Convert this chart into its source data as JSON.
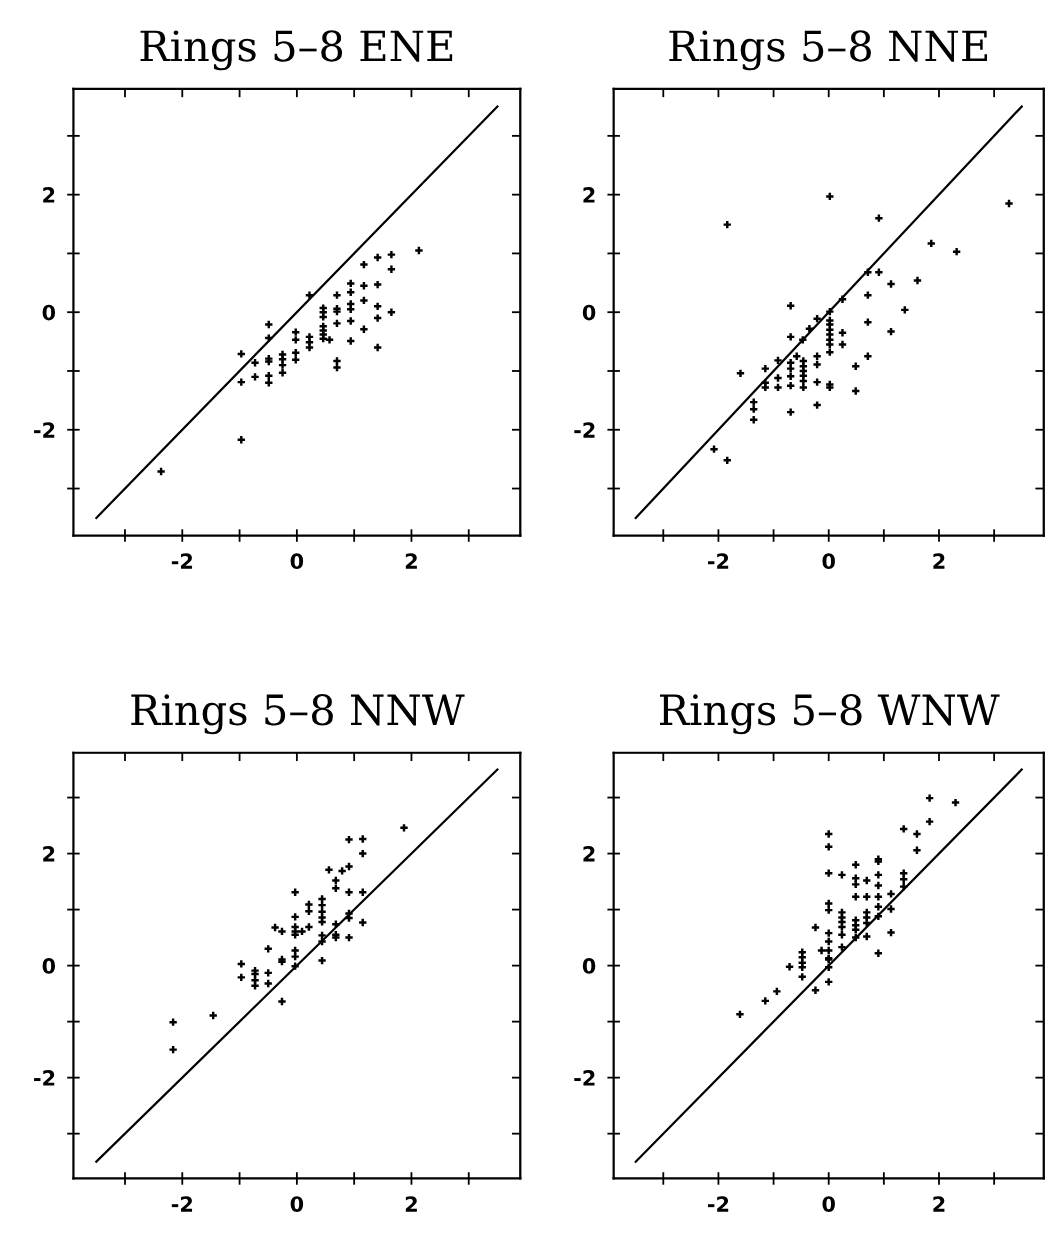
{
  "chart_data": [
    {
      "type": "scatter",
      "title": "Rings 5–8 ENE",
      "xlim": [
        -3.9,
        3.9
      ],
      "ylim": [
        -3.8,
        3.8
      ],
      "xticks": [
        {
          "value": -3,
          "label": null
        },
        -2,
        {
          "value": -1,
          "label": null
        },
        0,
        {
          "value": 1,
          "label": null
        },
        2,
        {
          "value": 3,
          "label": null
        }
      ],
      "yticks": [
        {
          "value": -3,
          "label": null
        },
        -2,
        {
          "value": -1,
          "label": null
        },
        0,
        {
          "value": 1,
          "label": null
        },
        2,
        {
          "value": 3,
          "label": null
        }
      ],
      "grid": false,
      "legend": false,
      "marker": "cross",
      "series": [
        {
          "type": "scatter",
          "color": "#000000",
          "x": [
            -2.37,
            -0.97,
            -0.97,
            -0.97,
            -0.73,
            -0.73,
            -0.49,
            -0.49,
            -0.49,
            -0.49,
            -0.49,
            -0.49,
            -0.25,
            -0.25,
            -0.25,
            -0.25,
            -0.02,
            -0.02,
            -0.02,
            -0.02,
            0.22,
            0.22,
            0.22,
            0.22,
            0.46,
            0.46,
            0.46,
            0.46,
            0.46,
            0.46,
            0.46,
            0.57,
            0.7,
            0.7,
            0.7,
            0.7,
            0.7,
            0.7,
            0.94,
            0.94,
            0.94,
            0.94,
            0.94,
            0.94,
            1.17,
            1.17,
            1.17,
            1.17,
            1.41,
            1.41,
            1.41,
            1.41,
            1.41,
            1.65,
            1.65,
            1.65,
            2.13
          ],
          "values": [
            -2.71,
            -0.71,
            -1.19,
            -2.17,
            -0.86,
            -1.1,
            -0.21,
            -0.44,
            -0.79,
            -0.84,
            -1.08,
            -1.2,
            -0.72,
            -0.8,
            -0.9,
            -1.03,
            -0.34,
            -0.47,
            -0.69,
            -0.81,
            0.29,
            -0.42,
            -0.51,
            -0.6,
            0.07,
            0.0,
            -0.08,
            -0.24,
            -0.31,
            -0.38,
            -0.45,
            -0.47,
            0.29,
            0.06,
            0.01,
            -0.19,
            -0.83,
            -0.94,
            0.49,
            0.34,
            0.14,
            0.05,
            -0.15,
            -0.49,
            0.81,
            0.45,
            0.2,
            -0.29,
            0.93,
            0.47,
            0.1,
            -0.1,
            -0.6,
            0.98,
            0.73,
            0.0,
            1.05
          ]
        },
        {
          "type": "line",
          "color": "#000000",
          "x": [
            -3.5,
            3.5
          ],
          "values": [
            -3.5,
            3.5
          ],
          "marker": "none",
          "line_style": "solid"
        }
      ]
    },
    {
      "type": "scatter",
      "title": "Rings 5–8 NNE",
      "xlim": [
        -3.9,
        3.9
      ],
      "ylim": [
        -3.8,
        3.8
      ],
      "xticks": [
        {
          "value": -3,
          "label": null
        },
        -2,
        {
          "value": -1,
          "label": null
        },
        0,
        {
          "value": 1,
          "label": null
        },
        2,
        {
          "value": 3,
          "label": null
        }
      ],
      "yticks": [
        {
          "value": -3,
          "label": null
        },
        -2,
        {
          "value": -1,
          "label": null
        },
        0,
        {
          "value": 1,
          "label": null
        },
        2,
        {
          "value": 3,
          "label": null
        }
      ],
      "grid": false,
      "legend": false,
      "marker": "cross",
      "series": [
        {
          "type": "scatter",
          "color": "#000000",
          "x": [
            -1.84,
            0.02,
            3.27,
            0.91,
            1.86,
            2.32,
            0.71,
            0.91,
            1.13,
            1.61,
            0.71,
            0.25,
            1.38,
            0.02,
            -0.69,
            -0.21,
            -0.35,
            -0.47,
            -0.69,
            0.71,
            1.13,
            0.02,
            0.02,
            0.02,
            0.02,
            0.02,
            0.02,
            0.02,
            0.25,
            0.25,
            0.71,
            0.49,
            0.49,
            0.02,
            0.02,
            -0.21,
            -0.21,
            -0.21,
            -0.21,
            -0.46,
            -0.46,
            -0.46,
            -0.46,
            -0.46,
            -0.46,
            -0.58,
            -0.69,
            -0.69,
            -0.69,
            -0.69,
            -0.69,
            -0.92,
            -0.92,
            -0.92,
            -1.15,
            -1.15,
            -1.15,
            -1.6,
            -1.36,
            -1.36,
            -1.36,
            -2.08,
            -1.84
          ],
          "values": [
            1.49,
            1.97,
            1.85,
            1.6,
            1.17,
            1.03,
            0.68,
            0.68,
            0.48,
            0.54,
            0.29,
            0.22,
            0.04,
            0.01,
            0.11,
            -0.11,
            -0.28,
            -0.47,
            -0.42,
            -0.17,
            -0.33,
            -0.14,
            -0.21,
            -0.3,
            -0.38,
            -0.47,
            -0.55,
            -0.68,
            -0.35,
            -0.55,
            -0.75,
            -0.92,
            -1.34,
            -1.23,
            -1.28,
            -0.75,
            -0.89,
            -1.19,
            -1.58,
            -0.83,
            -0.92,
            -1.0,
            -1.08,
            -1.17,
            -1.28,
            -0.75,
            -0.86,
            -0.96,
            -1.09,
            -1.25,
            -1.7,
            -0.82,
            -1.12,
            -1.28,
            -0.96,
            -1.2,
            -1.28,
            -1.04,
            -1.53,
            -1.65,
            -1.83,
            -2.33,
            -2.52
          ]
        },
        {
          "type": "line",
          "color": "#000000",
          "x": [
            -3.5,
            3.5
          ],
          "values": [
            -3.5,
            3.5
          ],
          "marker": "none",
          "line_style": "solid"
        }
      ]
    },
    {
      "type": "scatter",
      "title": "Rings 5–8 NNW",
      "xlim": [
        -3.9,
        3.9
      ],
      "ylim": [
        -3.8,
        3.8
      ],
      "xticks": [
        {
          "value": -3,
          "label": null
        },
        -2,
        {
          "value": -1,
          "label": null
        },
        0,
        {
          "value": 1,
          "label": null
        },
        2,
        {
          "value": 3,
          "label": null
        }
      ],
      "yticks": [
        {
          "value": -3,
          "label": null
        },
        -2,
        {
          "value": -1,
          "label": null
        },
        0,
        {
          "value": 1,
          "label": null
        },
        2,
        {
          "value": 3,
          "label": null
        }
      ],
      "grid": false,
      "legend": false,
      "marker": "cross",
      "series": [
        {
          "type": "scatter",
          "color": "#000000",
          "x": [
            1.87,
            0.91,
            1.15,
            1.15,
            0.56,
            0.79,
            0.91,
            0.68,
            0.68,
            0.91,
            1.15,
            -0.03,
            0.44,
            0.44,
            0.44,
            0.44,
            0.44,
            0.21,
            0.21,
            0.21,
            -0.03,
            -0.03,
            -0.03,
            -0.03,
            0.09,
            -0.38,
            -0.26,
            0.68,
            0.68,
            0.68,
            0.91,
            0.91,
            0.91,
            1.15,
            0.44,
            0.44,
            0.44,
            -0.03,
            -0.03,
            -0.03,
            -0.26,
            -0.26,
            -0.5,
            -0.97,
            -0.97,
            -0.73,
            -0.73,
            -0.73,
            -0.73,
            -0.5,
            -0.5,
            -0.26,
            -2.16,
            -2.16,
            -1.46
          ],
          "values": [
            2.46,
            2.25,
            2.26,
            2.0,
            1.71,
            1.69,
            1.77,
            1.52,
            1.38,
            1.31,
            1.31,
            1.31,
            1.19,
            1.08,
            0.96,
            0.86,
            0.78,
            1.09,
            0.97,
            0.69,
            0.87,
            0.69,
            0.61,
            0.55,
            0.61,
            0.68,
            0.61,
            0.74,
            0.55,
            0.5,
            0.93,
            0.85,
            0.5,
            0.77,
            0.54,
            0.43,
            0.09,
            0.27,
            0.16,
            -0.01,
            0.11,
            0.07,
            0.3,
            0.03,
            -0.21,
            -0.09,
            -0.15,
            -0.26,
            -0.36,
            -0.13,
            -0.32,
            -0.64,
            -1.01,
            -1.5,
            -0.89
          ]
        },
        {
          "type": "line",
          "color": "#000000",
          "x": [
            -3.5,
            3.5
          ],
          "values": [
            -3.5,
            3.5
          ],
          "marker": "none",
          "line_style": "solid"
        }
      ]
    },
    {
      "type": "scatter",
      "title": "Rings 5–8 WNW",
      "xlim": [
        -3.9,
        3.9
      ],
      "ylim": [
        -3.8,
        3.8
      ],
      "xticks": [
        {
          "value": -3,
          "label": null
        },
        -2,
        {
          "value": -1,
          "label": null
        },
        0,
        {
          "value": 1,
          "label": null
        },
        2,
        {
          "value": 3,
          "label": null
        }
      ],
      "yticks": [
        {
          "value": -3,
          "label": null
        },
        -2,
        {
          "value": -1,
          "label": null
        },
        0,
        {
          "value": 1,
          "label": null
        },
        2,
        {
          "value": 3,
          "label": null
        }
      ],
      "grid": false,
      "legend": false,
      "marker": "cross",
      "series": [
        {
          "type": "scatter",
          "color": "#000000",
          "x": [
            1.83,
            2.3,
            1.83,
            1.36,
            1.6,
            1.6,
            0.0,
            0.0,
            0.0,
            0.0,
            0.0,
            0.0,
            0.0,
            0.0,
            0.0,
            0.0,
            0.0,
            0.0,
            0.24,
            0.49,
            0.49,
            0.49,
            0.49,
            0.69,
            0.69,
            0.9,
            0.9,
            0.9,
            0.9,
            0.9,
            0.9,
            0.9,
            0.9,
            1.13,
            1.13,
            1.13,
            1.36,
            1.36,
            1.36,
            0.24,
            0.24,
            0.24,
            0.24,
            0.24,
            0.24,
            0.49,
            0.49,
            0.49,
            0.49,
            0.69,
            0.69,
            0.69,
            0.69,
            -0.24,
            -0.13,
            -0.48,
            -0.48,
            -0.48,
            -0.48,
            -0.48,
            -0.71,
            -0.24,
            -0.94,
            -1.15,
            -1.61
          ],
          "values": [
            2.99,
            2.91,
            2.57,
            2.44,
            2.35,
            2.06,
            2.35,
            2.12,
            1.65,
            1.11,
            0.99,
            0.58,
            0.43,
            0.27,
            0.13,
            0.11,
            -0.03,
            -0.29,
            1.62,
            1.8,
            1.56,
            1.45,
            1.23,
            1.52,
            1.23,
            1.9,
            1.86,
            1.62,
            1.43,
            1.23,
            1.05,
            0.88,
            0.22,
            1.28,
            1.01,
            0.59,
            1.65,
            1.54,
            1.41,
            0.95,
            0.86,
            0.78,
            0.69,
            0.55,
            0.33,
            0.81,
            0.72,
            0.64,
            0.5,
            0.95,
            0.86,
            0.76,
            0.52,
            0.68,
            0.27,
            0.24,
            0.15,
            0.05,
            -0.03,
            -0.2,
            -0.02,
            -0.44,
            -0.46,
            -0.63,
            -0.87
          ]
        },
        {
          "type": "line",
          "color": "#000000",
          "x": [
            -3.5,
            3.5
          ],
          "values": [
            -3.5,
            3.5
          ],
          "marker": "none",
          "line_style": "solid"
        }
      ]
    }
  ]
}
